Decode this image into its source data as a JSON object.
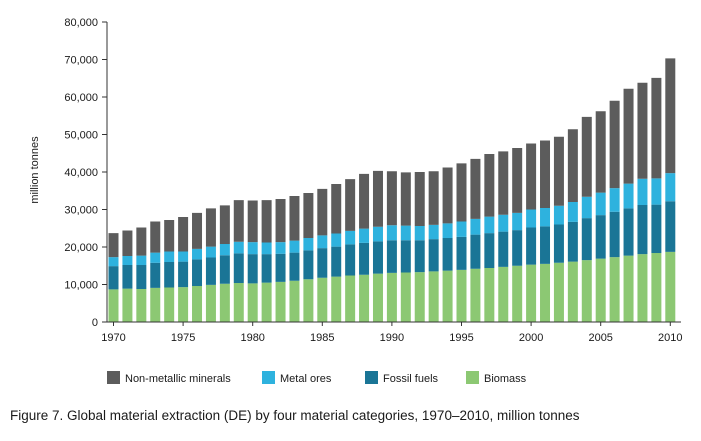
{
  "caption": "Figure 7. Global material extraction (DE) by four material categories, 1970–2010, million tonnes",
  "chart_data": {
    "type": "bar",
    "stacked": true,
    "ylabel": "million tonnes",
    "xlabel": "",
    "ylim": [
      0,
      80000
    ],
    "yticks": [
      "0",
      "10,000",
      "20,000",
      "30,000",
      "40,000",
      "50,000",
      "60,000",
      "70,000",
      "80,000"
    ],
    "ytick_values": [
      0,
      10000,
      20000,
      30000,
      40000,
      50000,
      60000,
      70000,
      80000
    ],
    "xticks": [
      "1970",
      "1975",
      "1980",
      "1985",
      "1990",
      "1995",
      "2000",
      "2005",
      "2010"
    ],
    "grid": false,
    "legend_position": "bottom",
    "categories": [
      1970,
      1971,
      1972,
      1973,
      1974,
      1975,
      1976,
      1977,
      1978,
      1979,
      1980,
      1981,
      1982,
      1983,
      1984,
      1985,
      1986,
      1987,
      1988,
      1989,
      1990,
      1991,
      1992,
      1993,
      1994,
      1995,
      1996,
      1997,
      1998,
      1999,
      2000,
      2001,
      2002,
      2003,
      2004,
      2005,
      2006,
      2007,
      2008,
      2009,
      2010
    ],
    "series": [
      {
        "name": "Biomass",
        "color": "#8cc873",
        "values": [
          8700,
          8900,
          8800,
          9100,
          9200,
          9300,
          9600,
          9900,
          10200,
          10400,
          10300,
          10500,
          10700,
          11000,
          11400,
          11800,
          12100,
          12400,
          12600,
          12900,
          13100,
          13200,
          13300,
          13500,
          13700,
          13900,
          14200,
          14400,
          14700,
          15000,
          15300,
          15500,
          15800,
          16100,
          16500,
          16900,
          17300,
          17700,
          18100,
          18400,
          18700
        ]
      },
      {
        "name": "Fossil fuels",
        "color": "#1a7596",
        "values": [
          6200,
          6300,
          6400,
          6700,
          6800,
          6800,
          7100,
          7300,
          7600,
          7900,
          7800,
          7600,
          7500,
          7500,
          7700,
          7900,
          8000,
          8300,
          8500,
          8600,
          8700,
          8600,
          8500,
          8600,
          8700,
          8800,
          9100,
          9300,
          9400,
          9500,
          9900,
          10000,
          10200,
          10600,
          11200,
          11600,
          12100,
          12600,
          13100,
          12900,
          13500
        ]
      },
      {
        "name": "Metal ores",
        "color": "#2eb2de",
        "values": [
          2400,
          2400,
          2500,
          2700,
          2800,
          2700,
          2800,
          2900,
          3000,
          3100,
          3200,
          3100,
          3100,
          3200,
          3300,
          3400,
          3500,
          3600,
          3800,
          3900,
          4000,
          3900,
          3800,
          3800,
          3900,
          4100,
          4200,
          4400,
          4500,
          4600,
          4800,
          4900,
          5000,
          5300,
          5700,
          6000,
          6300,
          6600,
          7000,
          7000,
          7500
        ]
      },
      {
        "name": "Non-metallic minerals",
        "color": "#5c5c5c",
        "values": [
          6400,
          6800,
          7500,
          8300,
          8400,
          9200,
          9600,
          10200,
          10300,
          11100,
          11100,
          11300,
          11500,
          11900,
          12000,
          12400,
          13200,
          13800,
          14600,
          14900,
          14400,
          14200,
          14400,
          14300,
          14900,
          15500,
          16000,
          16700,
          16900,
          17300,
          17600,
          18000,
          18400,
          19400,
          21300,
          21700,
          23300,
          25300,
          25600,
          26800,
          30600
        ]
      }
    ],
    "legend_order": [
      "Non-metallic minerals",
      "Metal ores",
      "Fossil fuels",
      "Biomass"
    ]
  }
}
